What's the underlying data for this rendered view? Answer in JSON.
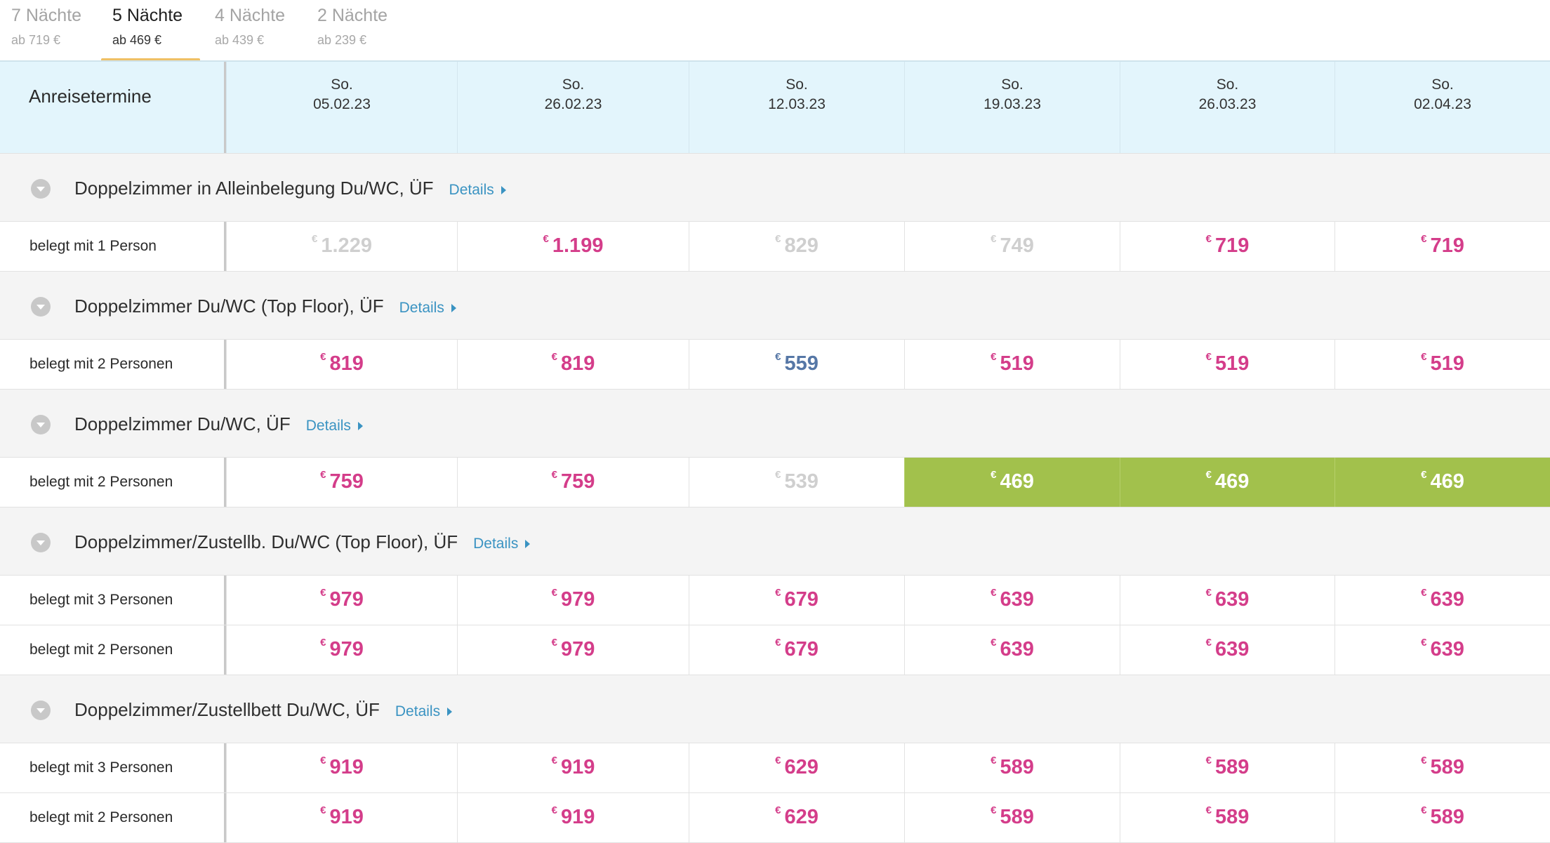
{
  "tabs": [
    {
      "title": "7 Nächte",
      "sub": "ab 719 €"
    },
    {
      "title": "5 Nächte",
      "sub": "ab 469 €"
    },
    {
      "title": "4 Nächte",
      "sub": "ab 439 €"
    },
    {
      "title": "2 Nächte",
      "sub": "ab 239 €"
    }
  ],
  "active_tab": 1,
  "table": {
    "header_label": "Anreisetermine",
    "dates": [
      {
        "dow": "So.",
        "date": "05.02.23"
      },
      {
        "dow": "So.",
        "date": "26.02.23"
      },
      {
        "dow": "So.",
        "date": "12.03.23"
      },
      {
        "dow": "So.",
        "date": "19.03.23"
      },
      {
        "dow": "So.",
        "date": "26.03.23"
      },
      {
        "dow": "So.",
        "date": "02.04.23"
      }
    ],
    "currency": "€",
    "details_label": "Details",
    "price_state_colors": {
      "normal": "#d43d8a",
      "unavailable": "#cfcfcf",
      "alternative": "#5677a6",
      "best_price_bg": "#a2c14c"
    },
    "rooms": [
      {
        "name": "Doppelzimmer in Alleinbelegung Du/WC, ÜF",
        "rows": [
          {
            "label": "belegt mit 1 Person",
            "prices": [
              {
                "v": "1.229",
                "s": "grey"
              },
              {
                "v": "1.199",
                "s": ""
              },
              {
                "v": "829",
                "s": "grey"
              },
              {
                "v": "749",
                "s": "grey"
              },
              {
                "v": "719",
                "s": ""
              },
              {
                "v": "719",
                "s": ""
              }
            ]
          }
        ]
      },
      {
        "name": "Doppelzimmer Du/WC (Top Floor), ÜF",
        "rows": [
          {
            "label": "belegt mit 2 Personen",
            "prices": [
              {
                "v": "819",
                "s": ""
              },
              {
                "v": "819",
                "s": ""
              },
              {
                "v": "559",
                "s": "blue"
              },
              {
                "v": "519",
                "s": ""
              },
              {
                "v": "519",
                "s": ""
              },
              {
                "v": "519",
                "s": ""
              }
            ]
          }
        ]
      },
      {
        "name": "Doppelzimmer Du/WC, ÜF",
        "rows": [
          {
            "label": "belegt mit 2 Personen",
            "prices": [
              {
                "v": "759",
                "s": ""
              },
              {
                "v": "759",
                "s": ""
              },
              {
                "v": "539",
                "s": "grey"
              },
              {
                "v": "469",
                "s": "best"
              },
              {
                "v": "469",
                "s": "best"
              },
              {
                "v": "469",
                "s": "best"
              }
            ]
          }
        ]
      },
      {
        "name": "Doppelzimmer/Zustellb. Du/WC (Top Floor), ÜF",
        "rows": [
          {
            "label": "belegt mit 3 Personen",
            "prices": [
              {
                "v": "979",
                "s": ""
              },
              {
                "v": "979",
                "s": ""
              },
              {
                "v": "679",
                "s": ""
              },
              {
                "v": "639",
                "s": ""
              },
              {
                "v": "639",
                "s": ""
              },
              {
                "v": "639",
                "s": ""
              }
            ]
          },
          {
            "label": "belegt mit 2 Personen",
            "prices": [
              {
                "v": "979",
                "s": ""
              },
              {
                "v": "979",
                "s": ""
              },
              {
                "v": "679",
                "s": ""
              },
              {
                "v": "639",
                "s": ""
              },
              {
                "v": "639",
                "s": ""
              },
              {
                "v": "639",
                "s": ""
              }
            ]
          }
        ]
      },
      {
        "name": "Doppelzimmer/Zustellbett Du/WC, ÜF",
        "rows": [
          {
            "label": "belegt mit 3 Personen",
            "prices": [
              {
                "v": "919",
                "s": ""
              },
              {
                "v": "919",
                "s": ""
              },
              {
                "v": "629",
                "s": ""
              },
              {
                "v": "589",
                "s": ""
              },
              {
                "v": "589",
                "s": ""
              },
              {
                "v": "589",
                "s": ""
              }
            ]
          },
          {
            "label": "belegt mit 2 Personen",
            "prices": [
              {
                "v": "919",
                "s": ""
              },
              {
                "v": "919",
                "s": ""
              },
              {
                "v": "629",
                "s": ""
              },
              {
                "v": "589",
                "s": ""
              },
              {
                "v": "589",
                "s": ""
              },
              {
                "v": "589",
                "s": ""
              }
            ]
          }
        ]
      }
    ]
  }
}
